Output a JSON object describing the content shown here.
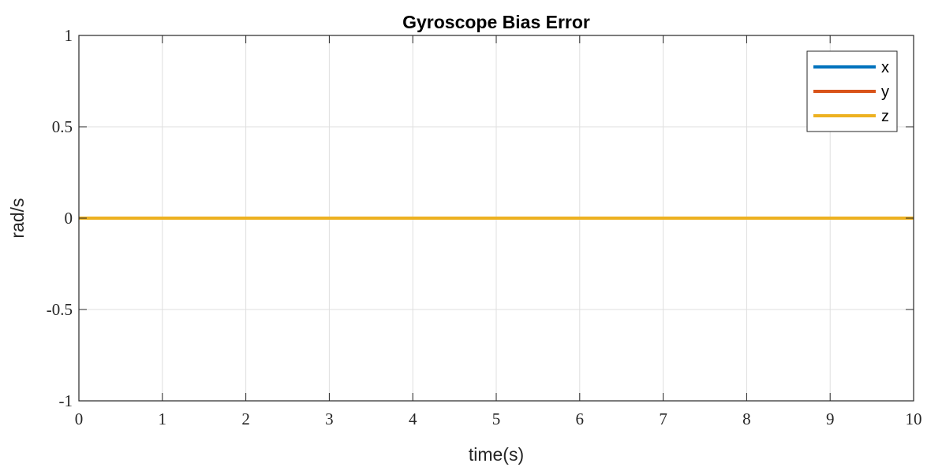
{
  "chart_data": {
    "type": "line",
    "title": "Gyroscope Bias Error",
    "xlabel": "time(s)",
    "ylabel": "rad/s",
    "xlim": [
      0,
      10
    ],
    "ylim": [
      -1,
      1
    ],
    "xticks": [
      0,
      1,
      2,
      3,
      4,
      5,
      6,
      7,
      8,
      9,
      10
    ],
    "xtick_labels": [
      "0",
      "1",
      "2",
      "3",
      "4",
      "5",
      "6",
      "7",
      "8",
      "9",
      "10"
    ],
    "yticks": [
      -1,
      -0.5,
      0,
      0.5,
      1
    ],
    "ytick_labels": [
      "-1",
      "-0.5",
      "0",
      "0.5",
      "1"
    ],
    "grid": true,
    "legend_position": "top-right",
    "series": [
      {
        "name": "x",
        "color": "#0072BD",
        "x": [
          0,
          10
        ],
        "y": [
          0,
          0
        ]
      },
      {
        "name": "y",
        "color": "#D95319",
        "x": [
          0,
          10
        ],
        "y": [
          0,
          0
        ]
      },
      {
        "name": "z",
        "color": "#EDB120",
        "x": [
          0,
          10
        ],
        "y": [
          0,
          0
        ]
      }
    ]
  }
}
